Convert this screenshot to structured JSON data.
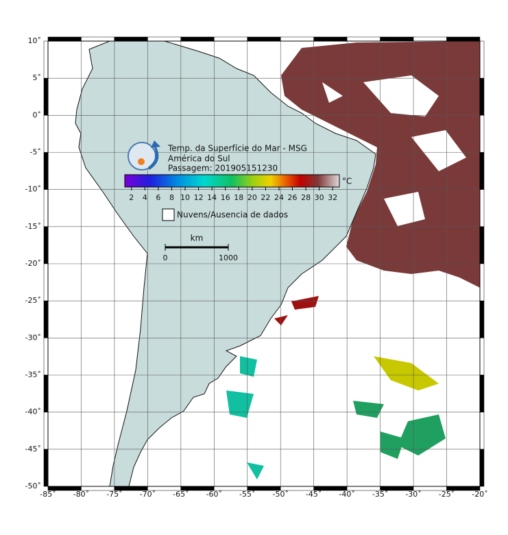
{
  "header": {
    "title": "Temp. da Superfície do Mar - MSG",
    "region": "América do Sul",
    "pass": "Passagem: 201905151230"
  },
  "colorbar": {
    "range": [
      1,
      33
    ],
    "ticks": [
      2,
      4,
      6,
      8,
      10,
      12,
      14,
      16,
      18,
      20,
      22,
      24,
      26,
      28,
      30,
      32
    ],
    "unit": "°C"
  },
  "legend": {
    "label": "Nuvens/Ausencia de dados"
  },
  "scale_bar": {
    "unit": "km",
    "ticks": [
      0,
      1000
    ]
  },
  "axes": {
    "lon_range": [
      -85,
      -20
    ],
    "lat_range": [
      -50,
      10
    ],
    "lon_ticks": [
      {
        "value": -85,
        "label": "-85˚"
      },
      {
        "value": -80,
        "label": "-80˚"
      },
      {
        "value": -75,
        "label": "-75˚"
      },
      {
        "value": -70,
        "label": "-70˚"
      },
      {
        "value": -65,
        "label": "-65˚"
      },
      {
        "value": -60,
        "label": "-60˚"
      },
      {
        "value": -55,
        "label": "-55˚"
      },
      {
        "value": -50,
        "label": "-50˚"
      },
      {
        "value": -45,
        "label": "-45˚"
      },
      {
        "value": -40,
        "label": "-40˚"
      },
      {
        "value": -35,
        "label": "-35˚"
      },
      {
        "value": -30,
        "label": "-30˚"
      },
      {
        "value": -25,
        "label": "-25˚"
      },
      {
        "value": -20,
        "label": "-20˚"
      }
    ],
    "lat_ticks": [
      {
        "value": 10,
        "label": "10˚"
      },
      {
        "value": 5,
        "label": "5˚"
      },
      {
        "value": 0,
        "label": "0˚"
      },
      {
        "value": -5,
        "label": "-5˚"
      },
      {
        "value": -10,
        "label": "-10˚"
      },
      {
        "value": -15,
        "label": "-15˚"
      },
      {
        "value": -20,
        "label": "-20˚"
      },
      {
        "value": -25,
        "label": "-25˚"
      },
      {
        "value": -30,
        "label": "-30˚"
      },
      {
        "value": -35,
        "label": "-35˚"
      },
      {
        "value": -40,
        "label": "-40˚"
      },
      {
        "value": -45,
        "label": "-45˚"
      },
      {
        "value": -50,
        "label": "-50˚"
      }
    ]
  }
}
